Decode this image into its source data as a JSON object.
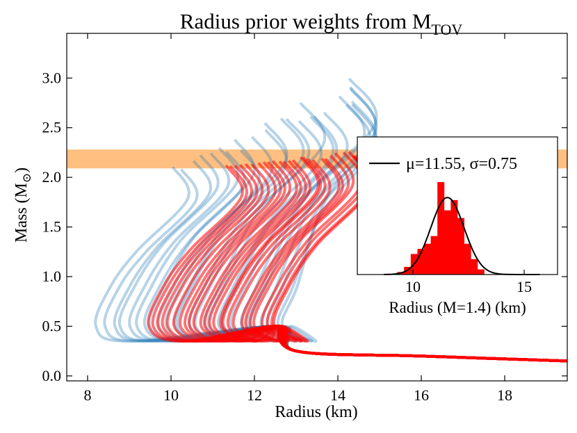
{
  "chart_data": [
    {
      "type": "line",
      "title_main": "Radius prior weights from M",
      "title_sub": "TOV",
      "xlabel": "Radius (km)",
      "ylabel_main": "Mass (M",
      "ylabel_sym": "⊙",
      "ylabel_close": ")",
      "xlim": [
        7.5,
        19.5
      ],
      "ylim": [
        -0.05,
        3.45
      ],
      "xticks": [
        "8",
        "10",
        "12",
        "14",
        "16",
        "18"
      ],
      "yticks": [
        "0.0",
        "0.5",
        "1.0",
        "1.5",
        "2.0",
        "2.5",
        "3.0"
      ],
      "grid": false,
      "mtov_band": {
        "y_low": 2.09,
        "y_high": 2.28,
        "color": "#ffbf80"
      },
      "series": [
        {
          "color": "#1f77b4",
          "sample_curves": 26,
          "r_at_mass_05_range": [
            8.2,
            12.8
          ],
          "mtov_range": [
            1.9,
            3.3
          ],
          "low_mass_tail": [
            [
              13.0,
              0.25
            ],
            [
              16.0,
              0.2
            ],
            [
              19.5,
              0.15
            ]
          ]
        },
        {
          "color": "#ff0000",
          "sample_curves": 26,
          "r_at_mass_05_range": [
            9.4,
            12.6
          ],
          "mtov_range": [
            2.09,
            2.28
          ],
          "low_mass_tail": [
            [
              13.0,
              0.25
            ],
            [
              16.0,
              0.2
            ],
            [
              19.5,
              0.15
            ]
          ]
        }
      ]
    },
    {
      "type": "bar",
      "xlabel": "Radius (M=1.4) (km)",
      "xlim": [
        7.5,
        16.5
      ],
      "xticks": [
        "10",
        "15"
      ],
      "legend": {
        "label": "μ=11.55, σ=0.75",
        "placement": "top"
      },
      "hist_color": "#ff0000",
      "bin_edges": [
        9.3,
        9.6,
        9.9,
        10.2,
        10.5,
        10.8,
        11.1,
        11.4,
        11.7,
        12.0,
        12.3,
        12.6,
        12.9,
        13.2
      ],
      "counts": [
        1,
        3,
        8,
        10,
        12,
        15,
        36,
        25,
        29,
        22,
        12,
        6,
        2
      ],
      "gaussian": {
        "mu": 11.55,
        "sigma": 0.75,
        "color": "#000000",
        "peak_count": 30
      }
    }
  ]
}
